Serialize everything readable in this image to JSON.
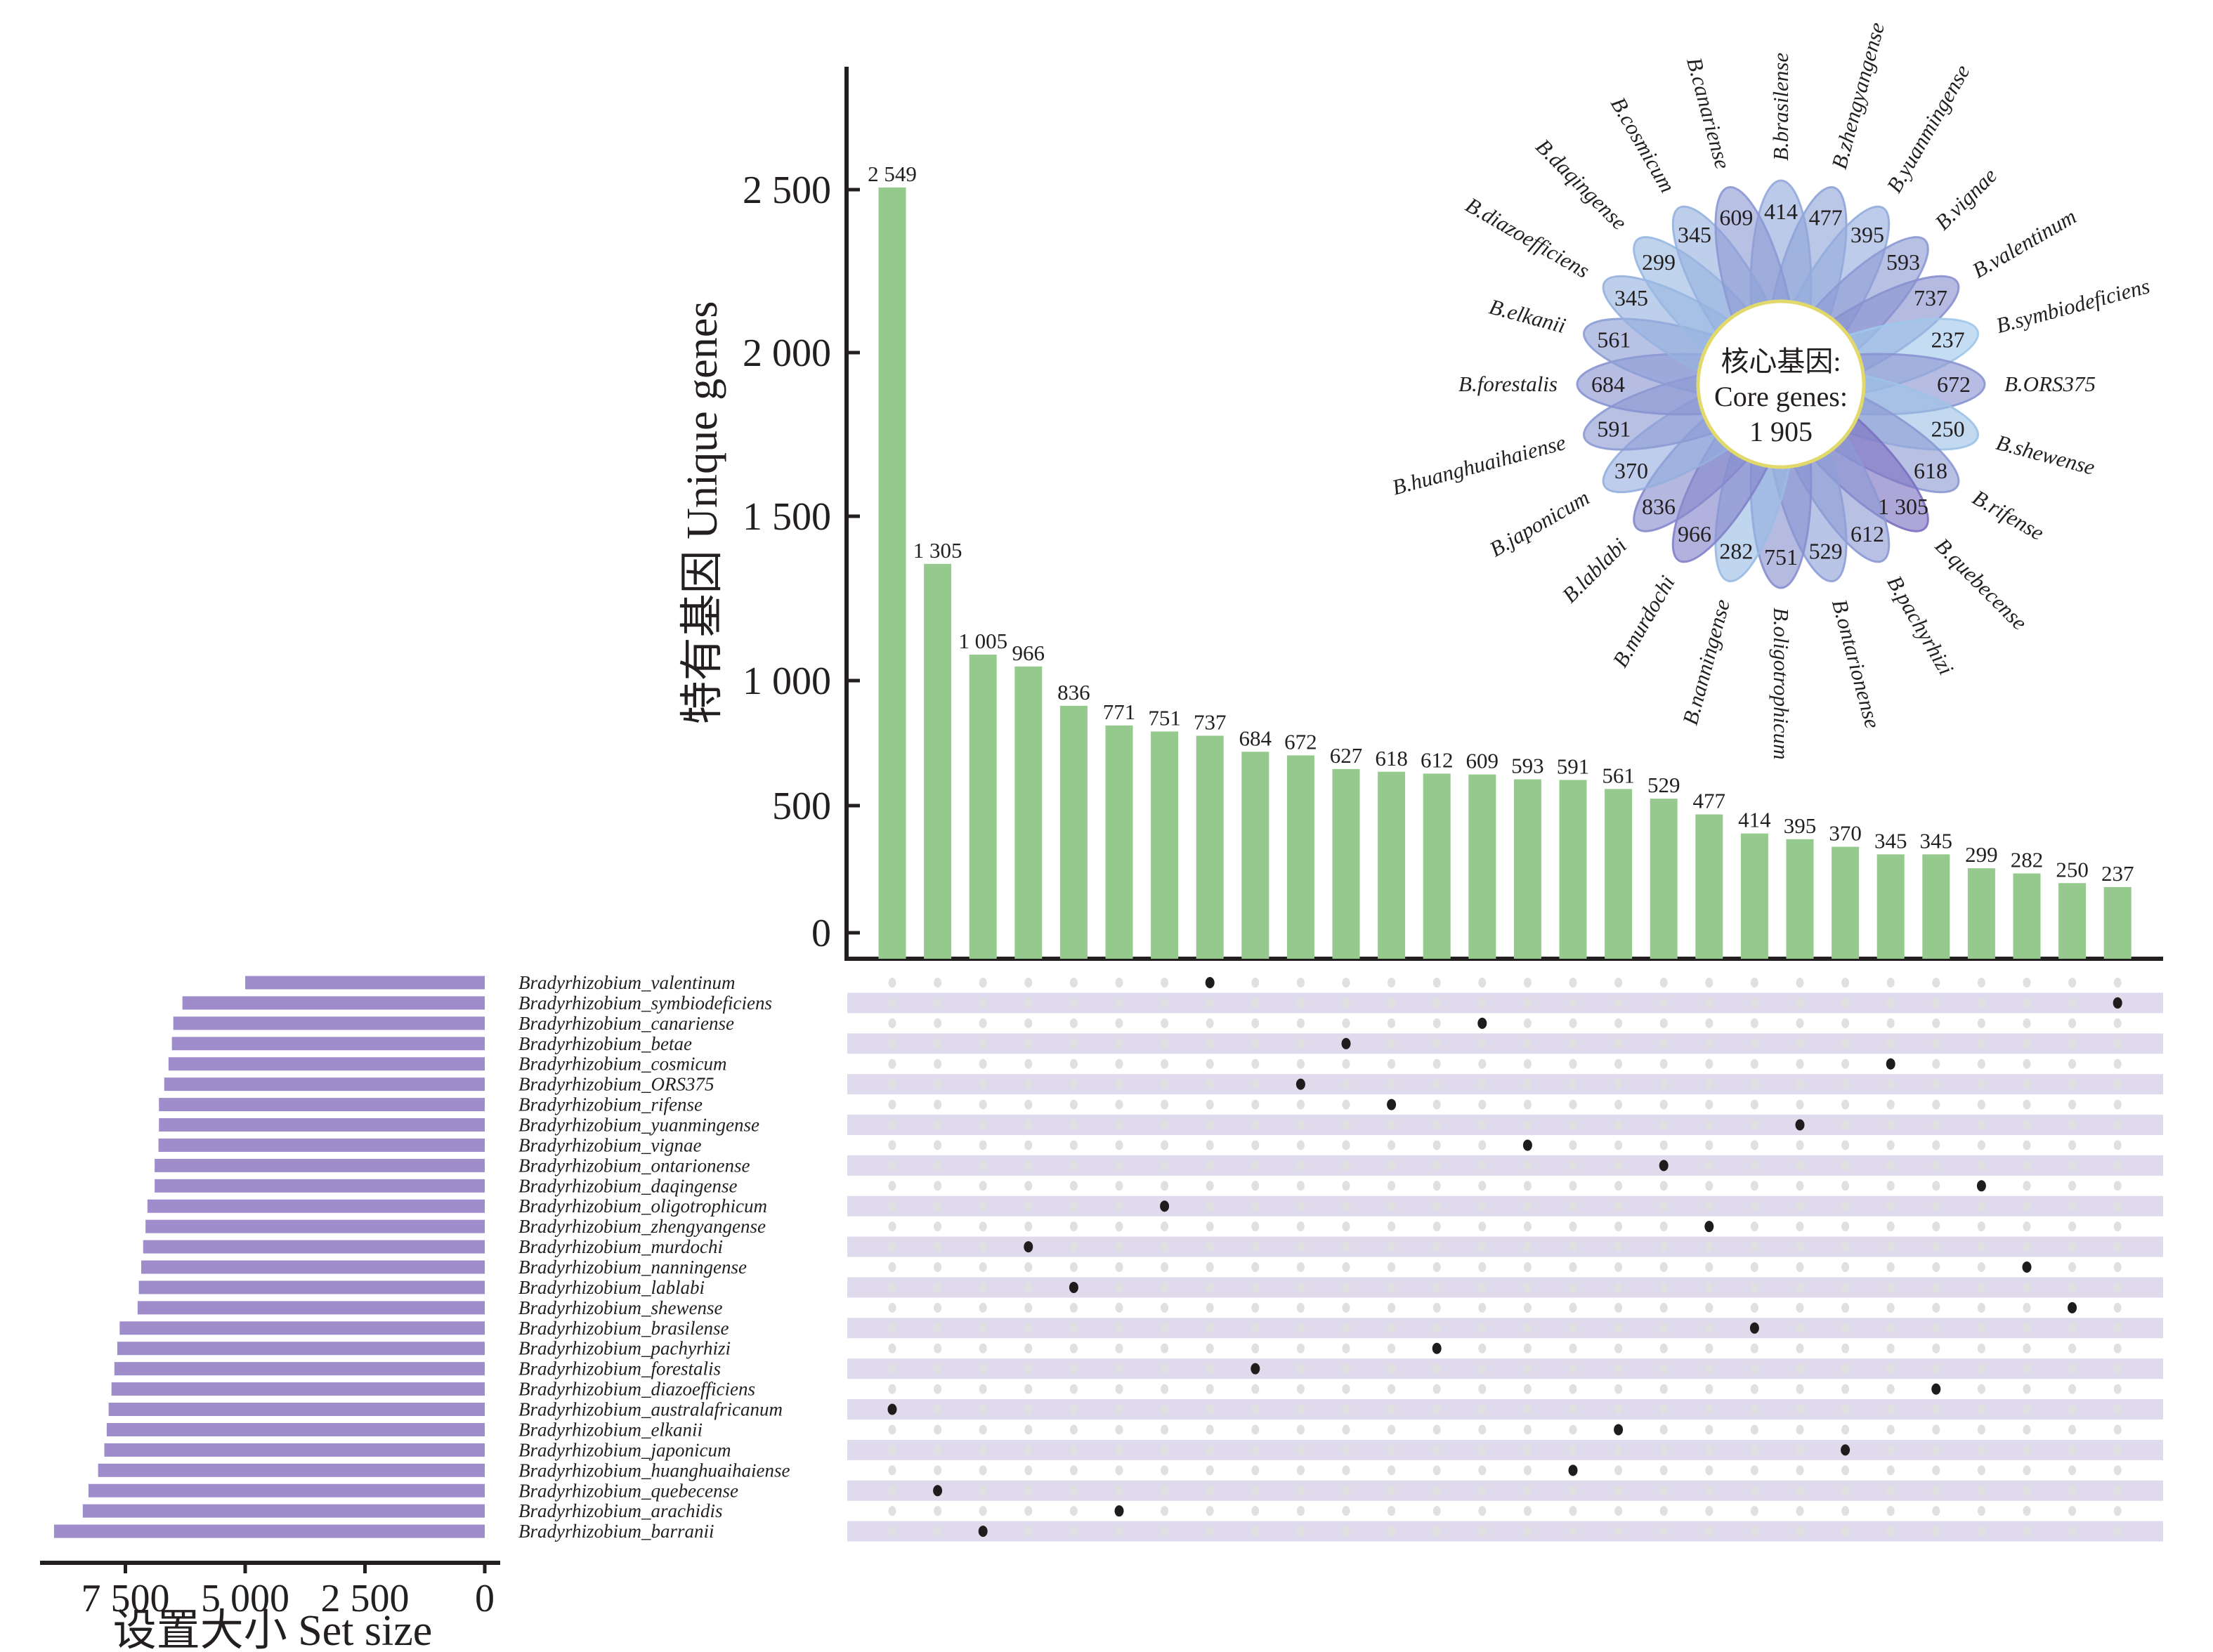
{
  "chart_data": {
    "type": "bar",
    "subtype": "upset-plot-with-flower-diagram",
    "intersection_bars": {
      "ylabel": "特有基因 Unique genes",
      "ylim": [
        0,
        2700
      ],
      "yticks": [
        0,
        500,
        1000,
        1500,
        2000,
        2500
      ],
      "ytick_labels": [
        "0",
        "500",
        "1 000",
        "1 500",
        "2 000",
        "2 500"
      ],
      "values": [
        2549,
        1305,
        1005,
        966,
        836,
        771,
        751,
        737,
        684,
        672,
        627,
        618,
        612,
        609,
        593,
        591,
        561,
        529,
        477,
        414,
        395,
        370,
        345,
        345,
        299,
        282,
        250,
        237
      ],
      "value_labels": [
        "2 549",
        "1 305",
        "1 005",
        "966",
        "836",
        "771",
        "751",
        "737",
        "684",
        "672",
        "627",
        "618",
        "612",
        "609",
        "593",
        "591",
        "561",
        "529",
        "477",
        "414",
        "395",
        "370",
        "345",
        "345",
        "299",
        "282",
        "250",
        "237"
      ],
      "color": "#96c98e"
    },
    "set_size_bars": {
      "xlabel": "设置大小 Set size",
      "xlim": [
        0,
        9200
      ],
      "xticks": [
        0,
        2500,
        5000,
        7500
      ],
      "xtick_labels": [
        "0",
        "2 500",
        "5 000",
        "7 500"
      ],
      "color": "#9e8ccb"
    },
    "matrix": {
      "stripe_color": "#dfdbed",
      "dot_inactive_color": "#e0e0e0",
      "dot_active_color": "#1f1c1d"
    },
    "sets": [
      {
        "name": "Bradyrhizobium_valentinum",
        "set_size": 5000,
        "unique_column": 8
      },
      {
        "name": "Bradyrhizobium_symbiodeficiens",
        "set_size": 6310,
        "unique_column": 28
      },
      {
        "name": "Bradyrhizobium_canariense",
        "set_size": 6500,
        "unique_column": 14
      },
      {
        "name": "Bradyrhizobium_betae",
        "set_size": 6530,
        "unique_column": 11
      },
      {
        "name": "Bradyrhizobium_cosmicum",
        "set_size": 6600,
        "unique_column": 23
      },
      {
        "name": "Bradyrhizobium_ORS375",
        "set_size": 6690,
        "unique_column": 10
      },
      {
        "name": "Bradyrhizobium_rifense",
        "set_size": 6800,
        "unique_column": 12
      },
      {
        "name": "Bradyrhizobium_yuanmingense",
        "set_size": 6800,
        "unique_column": 21
      },
      {
        "name": "Bradyrhizobium_vignae",
        "set_size": 6810,
        "unique_column": 15
      },
      {
        "name": "Bradyrhizobium_ontarionense",
        "set_size": 6890,
        "unique_column": 18
      },
      {
        "name": "Bradyrhizobium_daqingense",
        "set_size": 6890,
        "unique_column": 25
      },
      {
        "name": "Bradyrhizobium_oligotrophicum",
        "set_size": 7040,
        "unique_column": 7
      },
      {
        "name": "Bradyrhizobium_zhengyangense",
        "set_size": 7080,
        "unique_column": 19
      },
      {
        "name": "Bradyrhizobium_murdochi",
        "set_size": 7130,
        "unique_column": 4
      },
      {
        "name": "Bradyrhizobium_nanningense",
        "set_size": 7170,
        "unique_column": 26
      },
      {
        "name": "Bradyrhizobium_lablabi",
        "set_size": 7220,
        "unique_column": 5
      },
      {
        "name": "Bradyrhizobium_shewense",
        "set_size": 7245,
        "unique_column": 27
      },
      {
        "name": "Bradyrhizobium_brasilense",
        "set_size": 7620,
        "unique_column": 20
      },
      {
        "name": "Bradyrhizobium_pachyrhizi",
        "set_size": 7670,
        "unique_column": 13
      },
      {
        "name": "Bradyrhizobium_forestalis",
        "set_size": 7730,
        "unique_column": 9
      },
      {
        "name": "Bradyrhizobium_diazoefficiens",
        "set_size": 7790,
        "unique_column": 24
      },
      {
        "name": "Bradyrhizobium_australafricanum",
        "set_size": 7850,
        "unique_column": 1
      },
      {
        "name": "Bradyrhizobium_elkanii",
        "set_size": 7890,
        "unique_column": 17
      },
      {
        "name": "Bradyrhizobium_japonicum",
        "set_size": 7940,
        "unique_column": 22
      },
      {
        "name": "Bradyrhizobium_huanghuaihaiense",
        "set_size": 8070,
        "unique_column": 16
      },
      {
        "name": "Bradyrhizobium_quebecense",
        "set_size": 8270,
        "unique_column": 2
      },
      {
        "name": "Bradyrhizobium_arachidis",
        "set_size": 8390,
        "unique_column": 6
      },
      {
        "name": "Bradyrhizobium_barranii",
        "set_size": 8990,
        "unique_column": 3
      }
    ],
    "flower": {
      "center_label_cn": "核心基因:",
      "center_label_en": "Core genes:",
      "core_genes": 1905,
      "core_genes_label": "1 905",
      "center_stroke": "#e2d96c",
      "petal_color_low": "#9fc8ea",
      "petal_color_high": "#7b70c0",
      "petals": [
        {
          "label": "B.brasilense",
          "value": 414,
          "value_label": "414"
        },
        {
          "label": "B.zhengyangense",
          "value": 477,
          "value_label": "477"
        },
        {
          "label": "B.yuanmingense",
          "value": 395,
          "value_label": "395"
        },
        {
          "label": "B.vignae",
          "value": 593,
          "value_label": "593"
        },
        {
          "label": "B.valentinum",
          "value": 737,
          "value_label": "737"
        },
        {
          "label": "B.symbiodeficiens",
          "value": 237,
          "value_label": "237"
        },
        {
          "label": "B.ORS375",
          "value": 672,
          "value_label": "672"
        },
        {
          "label": "B.shewense",
          "value": 250,
          "value_label": "250"
        },
        {
          "label": "B.rifense",
          "value": 618,
          "value_label": "618"
        },
        {
          "label": "B.quebecense",
          "value": 1305,
          "value_label": "1 305"
        },
        {
          "label": "B.pachyrhizi",
          "value": 612,
          "value_label": "612"
        },
        {
          "label": "B.ontarionense",
          "value": 529,
          "value_label": "529"
        },
        {
          "label": "B.oligotrophicum",
          "value": 751,
          "value_label": "751"
        },
        {
          "label": "B.nanningense",
          "value": 282,
          "value_label": "282"
        },
        {
          "label": "B.murdochi",
          "value": 966,
          "value_label": "966"
        },
        {
          "label": "B.lablabi",
          "value": 836,
          "value_label": "836"
        },
        {
          "label": "B.japonicum",
          "value": 370,
          "value_label": "370"
        },
        {
          "label": "B.huanghuaihaiense",
          "value": 591,
          "value_label": "591"
        },
        {
          "label": "B.forestalis",
          "value": 684,
          "value_label": "684"
        },
        {
          "label": "B.elkanii",
          "value": 561,
          "value_label": "561"
        },
        {
          "label": "B.diazoefficiens",
          "value": 345,
          "value_label": "345"
        },
        {
          "label": "B.daqingense",
          "value": 299,
          "value_label": "299"
        },
        {
          "label": "B.cosmicum",
          "value": 345,
          "value_label": "345"
        },
        {
          "label": "B.canariense",
          "value": 609,
          "value_label": "609"
        }
      ]
    }
  }
}
